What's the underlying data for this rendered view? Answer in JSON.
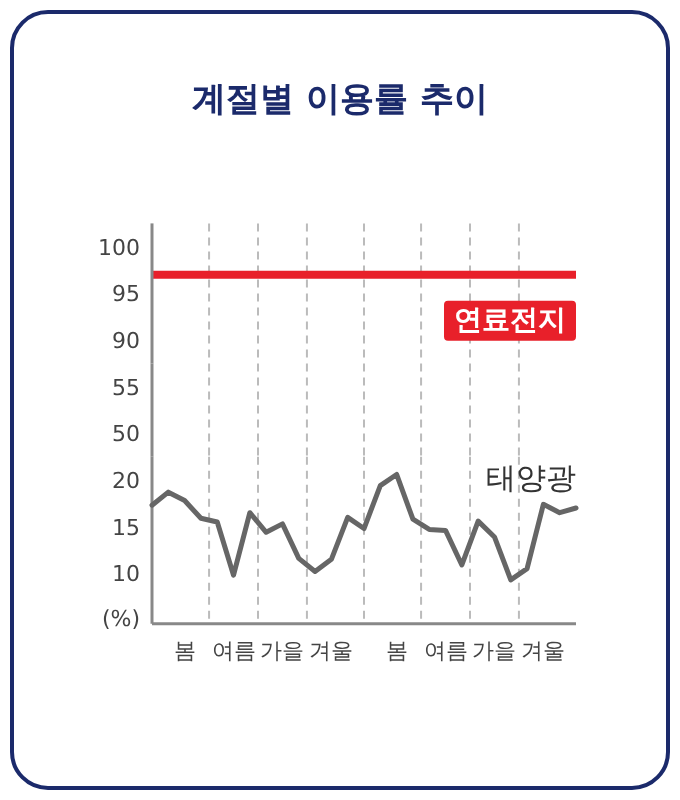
{
  "chart_data": [
    {
      "type": "line",
      "title": "계절별 이용률 추이",
      "tick_labels": "y",
      "grid": "x",
      "categories": [
        null,
        null,
        null,
        null,
        null,
        null,
        null,
        null,
        null,
        null,
        null,
        null,
        null,
        null,
        null,
        null,
        null,
        null,
        null,
        null,
        null,
        null,
        null,
        null,
        null,
        null,
        null
      ],
      "ylim": [
        87.5,
        102.5
      ],
      "yticks": [
        90,
        95,
        100
      ],
      "ref_lines": [
        {
          "axis": "y",
          "value": 97,
          "label": "연료전지",
          "color": "#e8202a",
          "line_style": "solid"
        }
      ]
    },
    {
      "type": "line",
      "tick_labels": "y",
      "grid": "x",
      "categories": [
        null,
        null,
        null,
        null,
        null,
        null,
        null,
        null,
        null,
        null,
        null,
        null,
        null,
        null,
        null,
        null,
        null,
        null,
        null,
        null,
        null,
        null,
        null,
        null,
        null,
        null,
        null
      ],
      "ylim": [
        47.5,
        57.5
      ],
      "yticks": [
        50,
        55
      ]
    },
    {
      "type": "line",
      "ylabel": "(%)",
      "categories": [
        null,
        null,
        "봄",
        null,
        null,
        "여름",
        null,
        null,
        "가을",
        null,
        null,
        "겨울",
        null,
        null,
        null,
        "봄",
        null,
        null,
        "여름",
        null,
        null,
        "가을",
        null,
        null,
        "겨울",
        null,
        null
      ],
      "ylim": [
        4.6,
        22.5
      ],
      "yticks": [
        10,
        15,
        20
      ],
      "series": [
        {
          "name": "태양광",
          "color": "#666666",
          "values": [
            17.3,
            18.7,
            17.8,
            15.9,
            15.5,
            9.8,
            16.5,
            14.4,
            15.3,
            11.6,
            10.2,
            11.5,
            16.0,
            14.8,
            19.4,
            20.6,
            15.8,
            14.7,
            14.6,
            10.9,
            15.6,
            13.9,
            9.3,
            10.5,
            17.4,
            16.5,
            17.0
          ]
        }
      ],
      "grid": "x",
      "legend": false,
      "marker": "none",
      "line_style": "solid"
    }
  ]
}
